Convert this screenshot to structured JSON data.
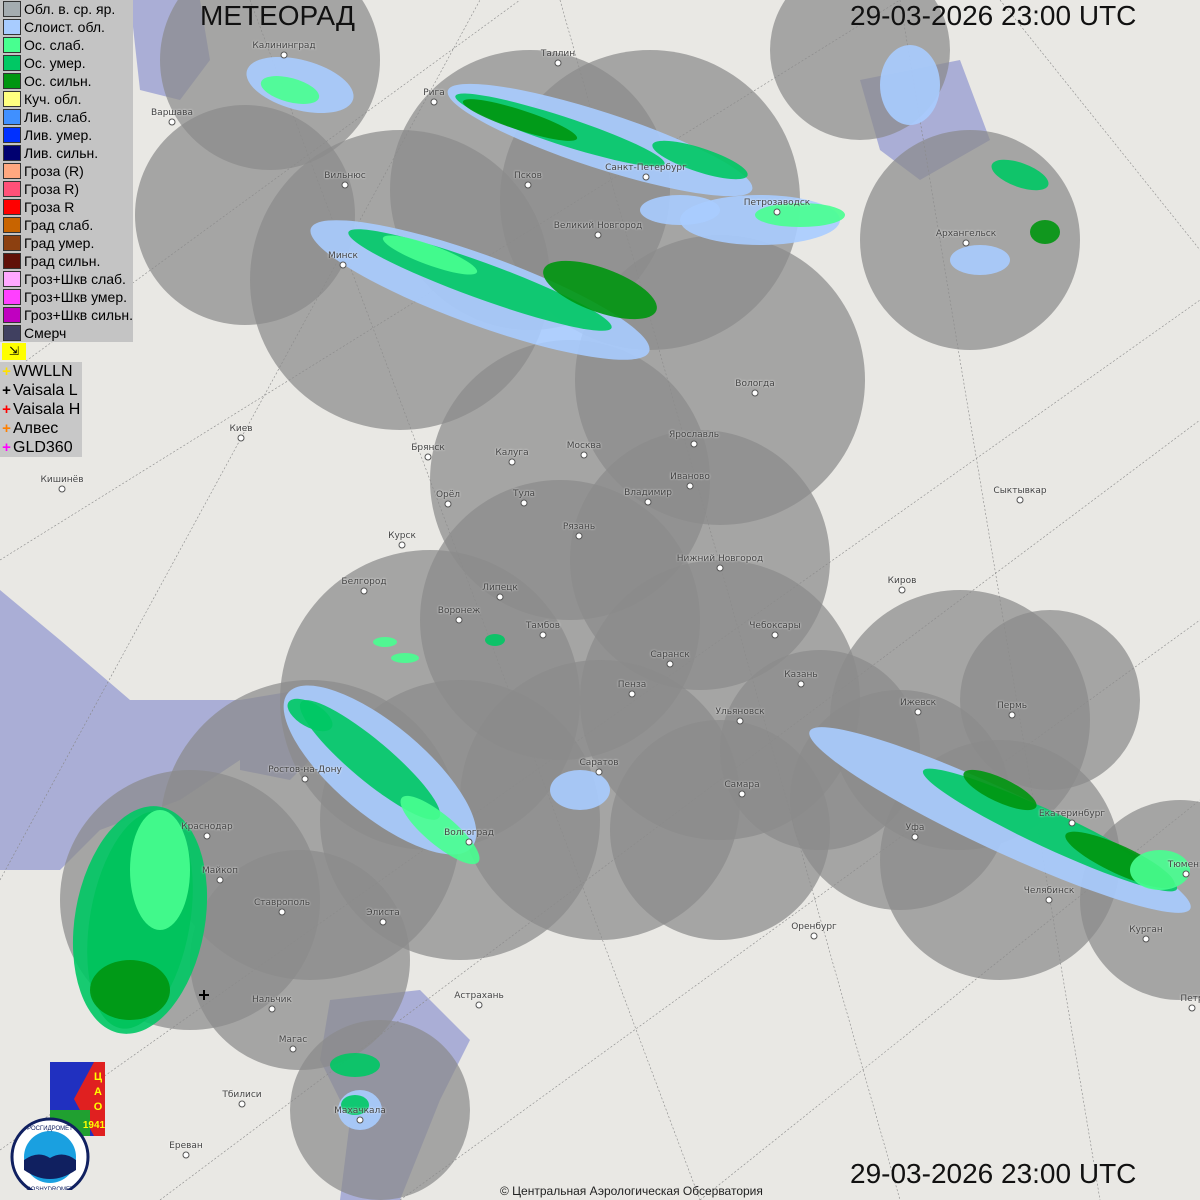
{
  "header": {
    "title": "МЕТЕОРАД",
    "timestamp_top": "29-03-2026  23:00 UTC",
    "timestamp_bottom": "29-03-2026  23:00 UTC"
  },
  "legend": [
    {
      "label": "Обл. в. ср. яр.",
      "color": "#a4acb0"
    },
    {
      "label": "Слоист. обл.",
      "color": "#a8ccff"
    },
    {
      "label": "Ос. слаб.",
      "color": "#48ff90"
    },
    {
      "label": "Ос. умер.",
      "color": "#00c864"
    },
    {
      "label": "Ос. сильн.",
      "color": "#009610"
    },
    {
      "label": "Куч. обл.",
      "color": "#ffff80"
    },
    {
      "label": "Лив. слаб.",
      "color": "#4090ff"
    },
    {
      "label": "Лив. умер.",
      "color": "#0030ff"
    },
    {
      "label": "Лив. сильн.",
      "color": "#000070"
    },
    {
      "label": "Гроза (R)",
      "color": "#ffa880"
    },
    {
      "label": "Гроза R)",
      "color": "#ff5078"
    },
    {
      "label": "Гроза R",
      "color": "#ff0000"
    },
    {
      "label": "Град слаб.",
      "color": "#c86400"
    },
    {
      "label": "Град умер.",
      "color": "#8c4010"
    },
    {
      "label": "Град сильн.",
      "color": "#601008"
    },
    {
      "label": "Гроз+Шкв слаб.",
      "color": "#ffa8ff"
    },
    {
      "label": "Гроз+Шкв умер.",
      "color": "#ff40ff"
    },
    {
      "label": "Гроз+Шкв сильн.",
      "color": "#c000c0"
    },
    {
      "label": "Смерч",
      "color": "#404060"
    }
  ],
  "lightning_toggle_icon": "flag-arrow-icon",
  "lightning_networks": [
    {
      "label": "WWLLN",
      "color": "#ffe000"
    },
    {
      "label": "Vaisala L",
      "color": "#000000"
    },
    {
      "label": "Vaisala H",
      "color": "#ff0000"
    },
    {
      "label": "Алвес",
      "color": "#ff8000"
    },
    {
      "label": "GLD360",
      "color": "#ff00ff"
    }
  ],
  "cities": [
    "Калининград",
    "Таллин",
    "Рига",
    "Варшава",
    "Вильнюс",
    "Псков",
    "Санкт-Петербург",
    "Петрозаводск",
    "Архангельск",
    "Великий Новгород",
    "Минск",
    "Вологда",
    "Киев",
    "Брянск",
    "Калуга",
    "Москва",
    "Ярославль",
    "Иваново",
    "Кишинёв",
    "Орёл",
    "Тула",
    "Владимир",
    "Рязань",
    "Курск",
    "Нижний Новгород",
    "Сыктывкар",
    "Белгород",
    "Липецк",
    "Киров",
    "Воронеж",
    "Тамбов",
    "Чебоксары",
    "Саранск",
    "Казань",
    "Пенза",
    "Ижевск",
    "Пермь",
    "Ульяновск",
    "Ростов-на-Дону",
    "Саратов",
    "Самара",
    "Екатеринбург",
    "Краснодар",
    "Волгоград",
    "Уфа",
    "Майкоп",
    "Тюмень",
    "Ставрополь",
    "Челябинск",
    "Элиста",
    "Оренбург",
    "Курган",
    "Нальчик",
    "Астрахань",
    "Петр",
    "Магас",
    "Тбилиси",
    "Махачкала",
    "Ереван"
  ],
  "logos": {
    "tsao": "ЦАО 1941",
    "roshydromet": "РОСГИДРОМЕТ ROSHYDROMET"
  },
  "copyright": "© Центральная Аэрологическая Обсерватория"
}
